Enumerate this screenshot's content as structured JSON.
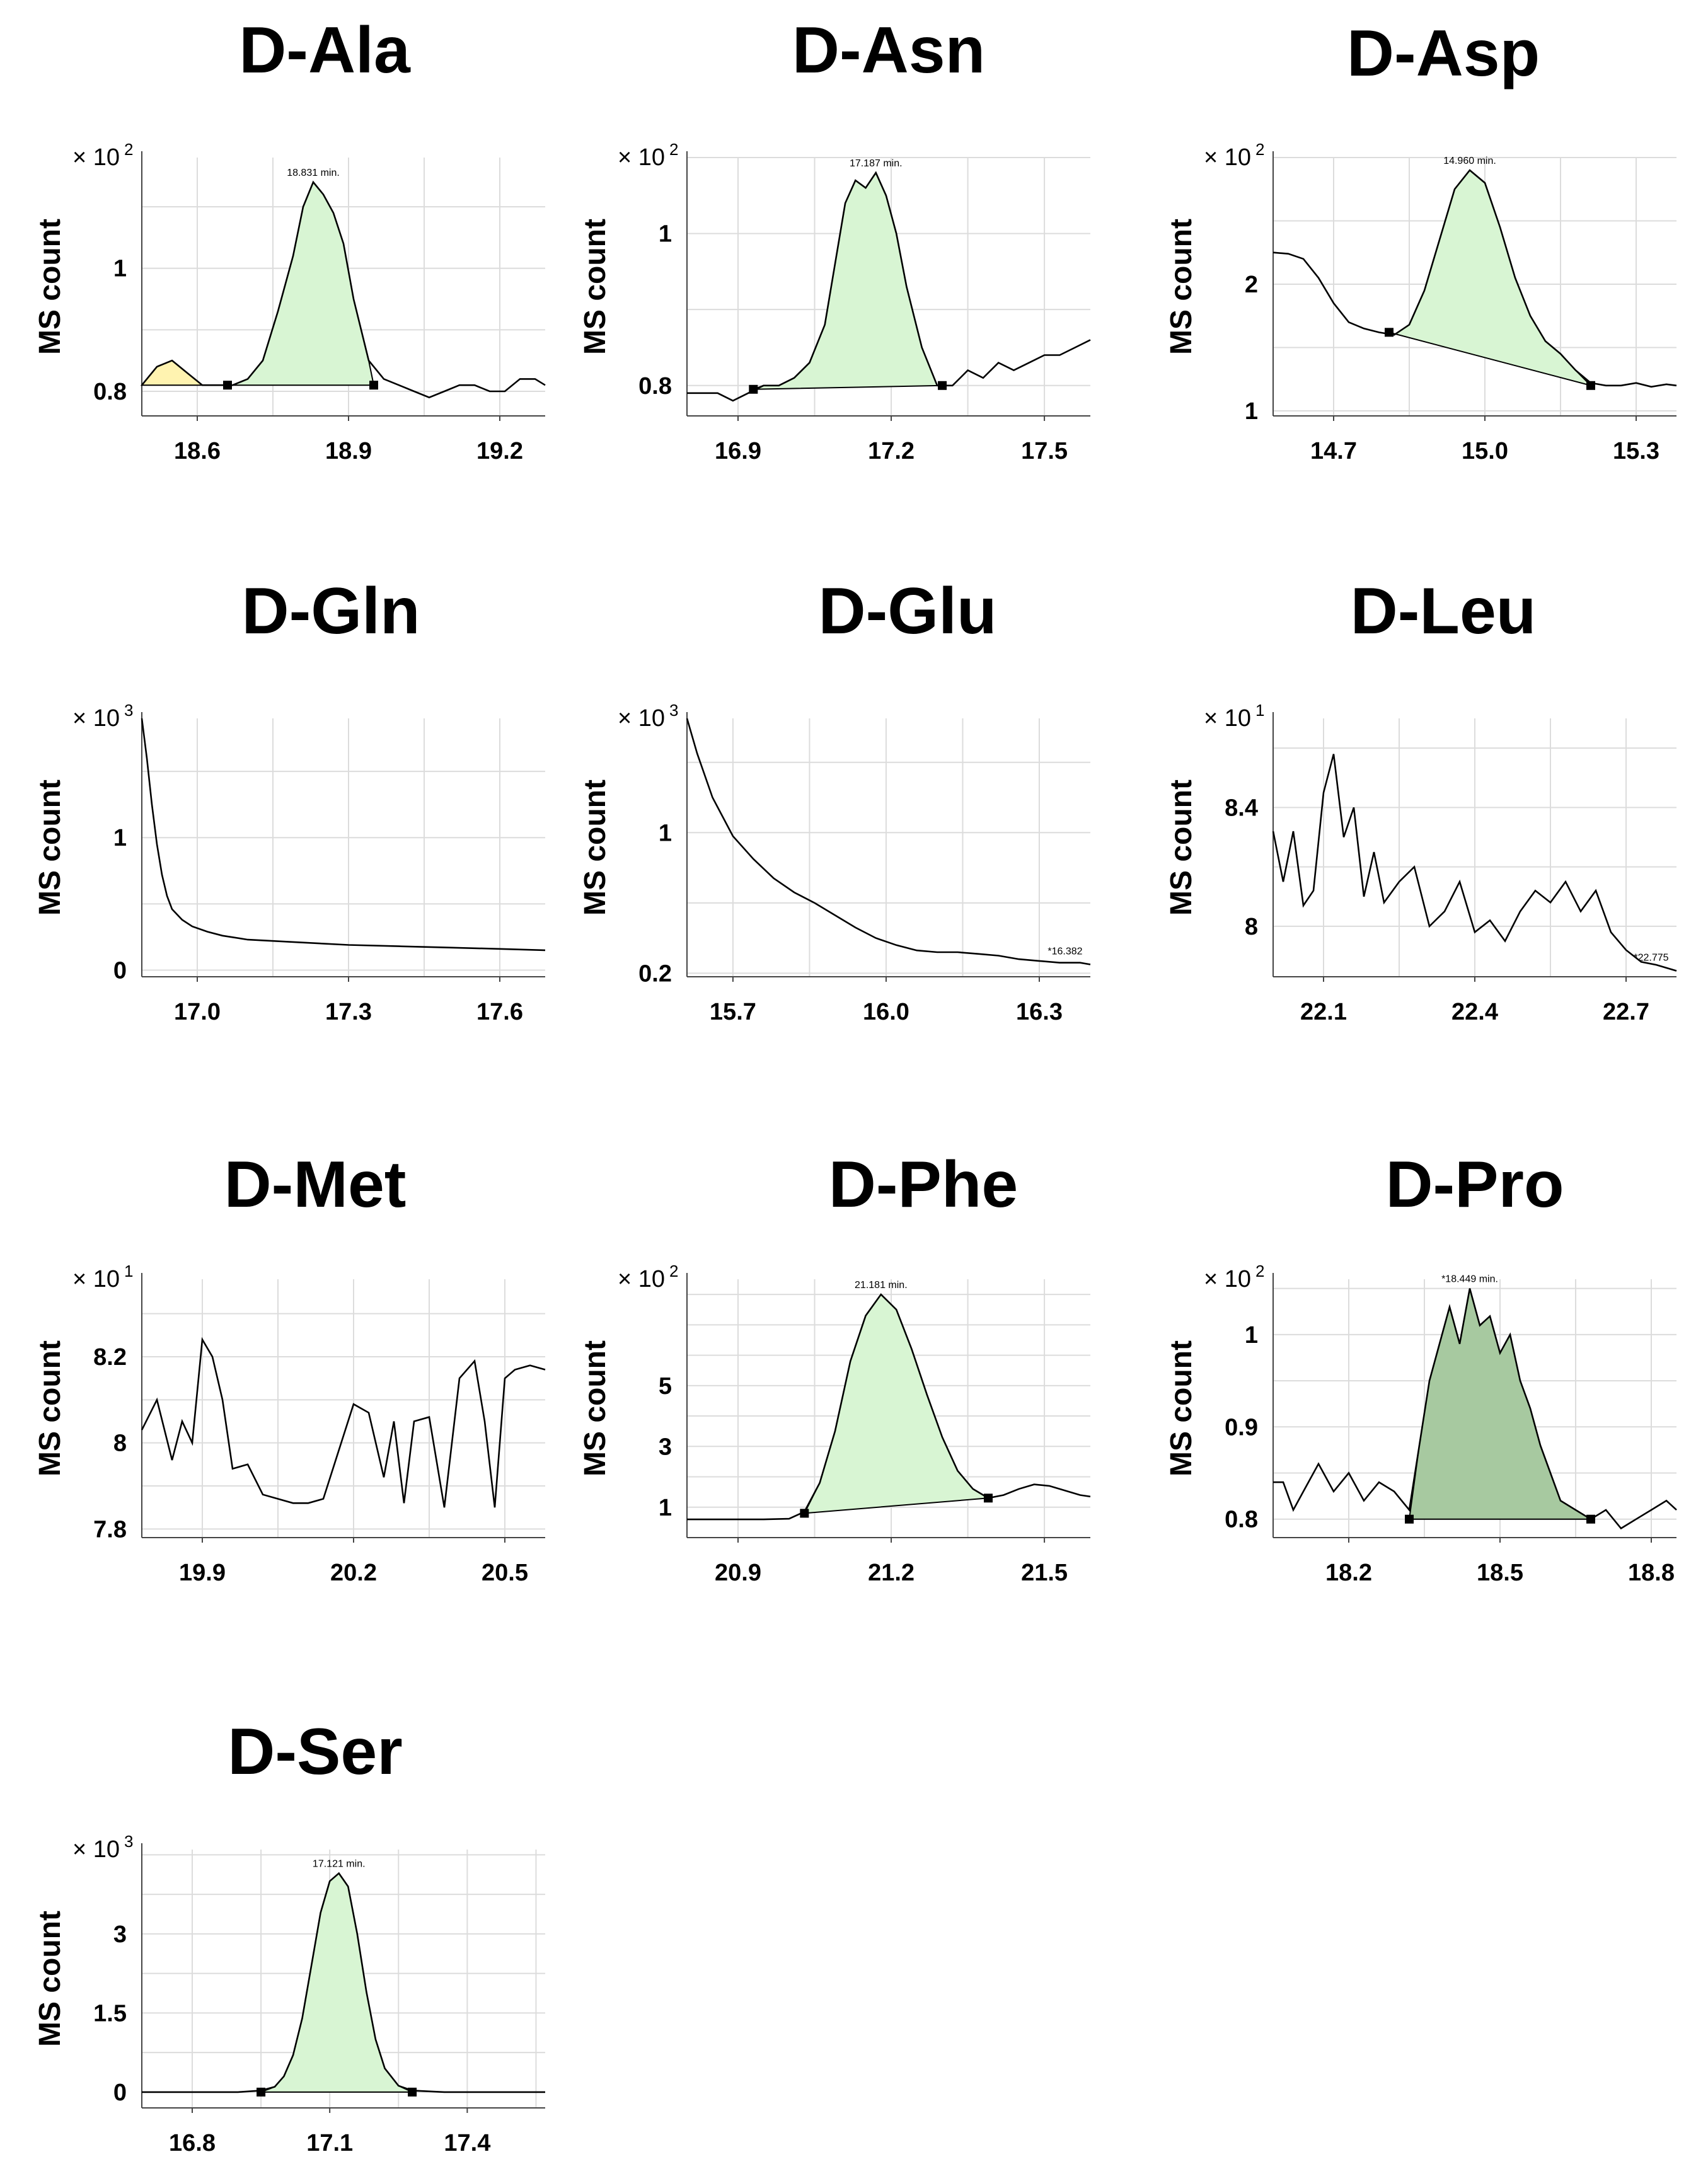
{
  "figure": {
    "y_axis_label": "MS count",
    "multiplier_symbol": "×",
    "colors": {
      "peak_light": "#d8f5d3",
      "peak_dark": "#a7c9a0",
      "peak_yellow": "#fff3b0",
      "trace": "#000000",
      "grid": "#dcdcdc"
    }
  },
  "chart_data": [
    {
      "type": "line",
      "title": "D-Ala",
      "ylabel": "MS count",
      "exponent": "2",
      "xlim": [
        18.49,
        19.29
      ],
      "ylim": [
        0.76,
        1.18
      ],
      "xticks": [
        18.6,
        18.9,
        19.2
      ],
      "xtick_labels": [
        "18.6",
        "18.9",
        "19.2"
      ],
      "yticks": [
        0.8,
        1.0
      ],
      "ytick_labels": [
        "0.8",
        "1"
      ],
      "annotations": [
        "18.831 min."
      ],
      "series": [
        {
          "name": "trace",
          "x": [
            18.49,
            18.52,
            18.55,
            18.58,
            18.61,
            18.64,
            18.67,
            18.7,
            18.73,
            18.76,
            18.79,
            18.81,
            18.83,
            18.85,
            18.87,
            18.89,
            18.91,
            18.94,
            18.97,
            19.0,
            19.03,
            19.06,
            19.09,
            19.12,
            19.15,
            19.18,
            19.21,
            19.24,
            19.27,
            19.29
          ],
          "y": [
            0.81,
            0.84,
            0.85,
            0.83,
            0.81,
            0.81,
            0.81,
            0.82,
            0.85,
            0.93,
            1.02,
            1.1,
            1.14,
            1.12,
            1.09,
            1.04,
            0.95,
            0.85,
            0.82,
            0.81,
            0.8,
            0.79,
            0.8,
            0.81,
            0.81,
            0.8,
            0.8,
            0.82,
            0.82,
            0.81
          ]
        }
      ],
      "peaks": [
        {
          "color": "light",
          "x0": 18.66,
          "x1": 18.95,
          "baseline": [
            0.81,
            0.81
          ]
        },
        {
          "color": "yellow",
          "x0": 18.49,
          "x1": 18.64,
          "baseline": [
            0.81,
            0.81
          ]
        }
      ]
    },
    {
      "type": "line",
      "title": "D-Asn",
      "ylabel": "MS count",
      "exponent": "2",
      "xlim": [
        16.8,
        17.59
      ],
      "ylim": [
        0.76,
        1.1
      ],
      "xticks": [
        16.9,
        17.2,
        17.5
      ],
      "xtick_labels": [
        "16.9",
        "17.2",
        "17.5"
      ],
      "yticks": [
        0.8,
        1.0
      ],
      "ytick_labels": [
        "0.8",
        "1"
      ],
      "annotations": [
        "17.187 min."
      ],
      "series": [
        {
          "name": "trace",
          "x": [
            16.8,
            16.83,
            16.86,
            16.89,
            16.92,
            16.95,
            16.98,
            17.01,
            17.04,
            17.07,
            17.09,
            17.11,
            17.13,
            17.15,
            17.17,
            17.19,
            17.21,
            17.23,
            17.26,
            17.29,
            17.32,
            17.35,
            17.38,
            17.41,
            17.44,
            17.47,
            17.5,
            17.53,
            17.56,
            17.59
          ],
          "y": [
            0.79,
            0.79,
            0.79,
            0.78,
            0.79,
            0.8,
            0.8,
            0.81,
            0.83,
            0.88,
            0.96,
            1.04,
            1.07,
            1.06,
            1.08,
            1.05,
            1.0,
            0.93,
            0.85,
            0.8,
            0.8,
            0.82,
            0.81,
            0.83,
            0.82,
            0.83,
            0.84,
            0.84,
            0.85,
            0.86
          ]
        }
      ],
      "peaks": [
        {
          "color": "light",
          "x0": 16.93,
          "x1": 17.3,
          "baseline": [
            0.795,
            0.8
          ]
        }
      ]
    },
    {
      "type": "line",
      "title": "D-Asp",
      "ylabel": "MS count",
      "exponent": "2",
      "xlim": [
        14.58,
        15.38
      ],
      "ylim": [
        0.96,
        3.0
      ],
      "xticks": [
        14.7,
        15.0,
        15.3
      ],
      "xtick_labels": [
        "14.7",
        "15.0",
        "15.3"
      ],
      "yticks": [
        1.0,
        2.0
      ],
      "ytick_labels": [
        "1",
        "2"
      ],
      "annotations": [
        "14.960 min."
      ],
      "series": [
        {
          "name": "trace",
          "x": [
            14.58,
            14.61,
            14.64,
            14.67,
            14.7,
            14.73,
            14.76,
            14.79,
            14.82,
            14.85,
            14.88,
            14.91,
            14.94,
            14.97,
            15.0,
            15.03,
            15.06,
            15.09,
            15.12,
            15.15,
            15.18,
            15.21,
            15.24,
            15.27,
            15.3,
            15.33,
            15.36,
            15.38
          ],
          "y": [
            2.25,
            2.24,
            2.2,
            2.05,
            1.85,
            1.7,
            1.65,
            1.62,
            1.6,
            1.68,
            1.95,
            2.35,
            2.75,
            2.9,
            2.8,
            2.45,
            2.05,
            1.75,
            1.55,
            1.45,
            1.32,
            1.22,
            1.2,
            1.2,
            1.22,
            1.19,
            1.21,
            1.2
          ]
        }
      ],
      "peaks": [
        {
          "color": "light",
          "x0": 14.81,
          "x1": 15.21,
          "baseline": [
            1.62,
            1.2
          ]
        }
      ]
    },
    {
      "type": "line",
      "title": "D-Gln",
      "ylabel": "MS count",
      "exponent": "3",
      "xlim": [
        16.89,
        17.69
      ],
      "ylim": [
        -0.05,
        1.9
      ],
      "xticks": [
        17.0,
        17.3,
        17.6
      ],
      "xtick_labels": [
        "17.0",
        "17.3",
        "17.6"
      ],
      "yticks": [
        0.0,
        1.0
      ],
      "ytick_labels": [
        "0",
        "1"
      ],
      "annotations": [],
      "series": [
        {
          "name": "trace",
          "x": [
            16.89,
            16.9,
            16.91,
            16.92,
            16.93,
            16.94,
            16.95,
            16.97,
            16.99,
            17.02,
            17.05,
            17.1,
            17.15,
            17.2,
            17.3,
            17.4,
            17.5,
            17.6,
            17.69
          ],
          "y": [
            1.9,
            1.6,
            1.25,
            0.95,
            0.72,
            0.56,
            0.46,
            0.38,
            0.33,
            0.29,
            0.26,
            0.23,
            0.22,
            0.21,
            0.19,
            0.18,
            0.17,
            0.16,
            0.15
          ]
        }
      ],
      "peaks": []
    },
    {
      "type": "line",
      "title": "D-Glu",
      "ylabel": "MS count",
      "exponent": "3",
      "xlim": [
        15.61,
        16.4
      ],
      "ylim": [
        0.18,
        1.65
      ],
      "xticks": [
        15.7,
        16.0,
        16.3
      ],
      "xtick_labels": [
        "15.7",
        "16.0",
        "16.3"
      ],
      "yticks": [
        0.2,
        1.0
      ],
      "ytick_labels": [
        "0.2",
        "1"
      ],
      "annotations": [
        "*16.382"
      ],
      "series": [
        {
          "name": "trace",
          "x": [
            15.61,
            15.63,
            15.66,
            15.7,
            15.74,
            15.78,
            15.82,
            15.86,
            15.9,
            15.94,
            15.98,
            16.02,
            16.06,
            16.1,
            16.14,
            16.18,
            16.22,
            16.26,
            16.3,
            16.34,
            16.38,
            16.4
          ],
          "y": [
            1.65,
            1.45,
            1.2,
            0.98,
            0.85,
            0.74,
            0.66,
            0.6,
            0.53,
            0.46,
            0.4,
            0.36,
            0.33,
            0.32,
            0.32,
            0.31,
            0.3,
            0.28,
            0.27,
            0.26,
            0.26,
            0.25
          ]
        }
      ],
      "peaks": []
    },
    {
      "type": "line",
      "title": "D-Leu",
      "ylabel": "MS count",
      "exponent": "1",
      "xlim": [
        22.0,
        22.8
      ],
      "ylim": [
        7.83,
        8.7
      ],
      "xticks": [
        22.1,
        22.4,
        22.7
      ],
      "xtick_labels": [
        "22.1",
        "22.4",
        "22.7"
      ],
      "yticks": [
        8.0,
        8.4
      ],
      "ytick_labels": [
        "8",
        "8.4"
      ],
      "annotations": [
        "*22.775"
      ],
      "series": [
        {
          "name": "trace",
          "x": [
            22.0,
            22.02,
            22.04,
            22.06,
            22.08,
            22.1,
            22.12,
            22.14,
            22.16,
            22.18,
            22.2,
            22.22,
            22.25,
            22.28,
            22.31,
            22.34,
            22.37,
            22.4,
            22.43,
            22.46,
            22.49,
            22.52,
            22.55,
            22.58,
            22.61,
            22.64,
            22.67,
            22.7,
            22.73,
            22.76,
            22.8
          ],
          "y": [
            8.32,
            8.15,
            8.32,
            8.07,
            8.12,
            8.45,
            8.58,
            8.3,
            8.4,
            8.1,
            8.25,
            8.08,
            8.15,
            8.2,
            8.0,
            8.05,
            8.15,
            7.98,
            8.02,
            7.95,
            8.05,
            8.12,
            8.08,
            8.15,
            8.05,
            8.12,
            7.98,
            7.92,
            7.88,
            7.87,
            7.85
          ]
        }
      ],
      "peaks": []
    },
    {
      "type": "line",
      "title": "D-Met",
      "ylabel": "MS count",
      "exponent": "1",
      "xlim": [
        19.78,
        20.58
      ],
      "ylim": [
        7.78,
        8.38
      ],
      "xticks": [
        19.9,
        20.2,
        20.5
      ],
      "xtick_labels": [
        "19.9",
        "20.2",
        "20.5"
      ],
      "yticks": [
        7.8,
        8.0,
        8.2
      ],
      "ytick_labels": [
        "7.8",
        "8",
        "8.2"
      ],
      "annotations": [],
      "series": [
        {
          "name": "trace",
          "x": [
            19.78,
            19.81,
            19.84,
            19.86,
            19.88,
            19.9,
            19.92,
            19.94,
            19.96,
            19.99,
            20.02,
            20.05,
            20.08,
            20.11,
            20.14,
            20.17,
            20.2,
            20.23,
            20.26,
            20.28,
            20.3,
            20.32,
            20.35,
            20.38,
            20.41,
            20.44,
            20.46,
            20.48,
            20.5,
            20.52,
            20.55,
            20.58
          ],
          "y": [
            8.03,
            8.1,
            7.96,
            8.05,
            8.0,
            8.24,
            8.2,
            8.1,
            7.94,
            7.95,
            7.88,
            7.87,
            7.86,
            7.86,
            7.87,
            7.98,
            8.09,
            8.07,
            7.92,
            8.05,
            7.86,
            8.05,
            8.06,
            7.85,
            8.15,
            8.19,
            8.05,
            7.85,
            8.15,
            8.17,
            8.18,
            8.17
          ]
        }
      ],
      "peaks": []
    },
    {
      "type": "line",
      "title": "D-Phe",
      "ylabel": "MS count",
      "exponent": "2",
      "xlim": [
        20.8,
        21.59
      ],
      "ylim": [
        0.0,
        8.5
      ],
      "xticks": [
        20.9,
        21.2,
        21.5
      ],
      "xtick_labels": [
        "20.9",
        "21.2",
        "21.5"
      ],
      "yticks": [
        1.0,
        3.0,
        5.0
      ],
      "ytick_labels": [
        "1",
        "3",
        "5"
      ],
      "annotations": [
        "21.181 min."
      ],
      "series": [
        {
          "name": "trace",
          "x": [
            20.8,
            20.85,
            20.9,
            20.95,
            21.0,
            21.03,
            21.06,
            21.09,
            21.12,
            21.15,
            21.18,
            21.21,
            21.24,
            21.27,
            21.3,
            21.33,
            21.36,
            21.39,
            21.42,
            21.45,
            21.48,
            21.51,
            21.54,
            21.57,
            21.59
          ],
          "y": [
            0.6,
            0.6,
            0.6,
            0.6,
            0.62,
            0.85,
            1.8,
            3.5,
            5.8,
            7.3,
            8.0,
            7.5,
            6.2,
            4.7,
            3.3,
            2.2,
            1.6,
            1.3,
            1.4,
            1.6,
            1.75,
            1.7,
            1.55,
            1.4,
            1.35
          ]
        }
      ],
      "peaks": [
        {
          "color": "light",
          "x0": 21.03,
          "x1": 21.39,
          "baseline": [
            0.8,
            1.3
          ]
        }
      ]
    },
    {
      "type": "line",
      "title": "D-Pro",
      "ylabel": "MS count",
      "exponent": "2",
      "xlim": [
        18.05,
        18.85
      ],
      "ylim": [
        0.78,
        1.06
      ],
      "xticks": [
        18.2,
        18.5,
        18.8
      ],
      "xtick_labels": [
        "18.2",
        "18.5",
        "18.8"
      ],
      "yticks": [
        0.8,
        0.9,
        1.0
      ],
      "ytick_labels": [
        "0.8",
        "0.9",
        "1"
      ],
      "annotations": [
        "*18.449 min."
      ],
      "series": [
        {
          "name": "trace",
          "x": [
            18.05,
            18.07,
            18.09,
            18.11,
            18.14,
            18.17,
            18.2,
            18.23,
            18.26,
            18.29,
            18.32,
            18.34,
            18.36,
            18.38,
            18.4,
            18.42,
            18.44,
            18.46,
            18.48,
            18.5,
            18.52,
            18.54,
            18.56,
            18.58,
            18.6,
            18.62,
            18.65,
            18.68,
            18.71,
            18.74,
            18.77,
            18.8,
            18.83,
            18.85
          ],
          "y": [
            0.84,
            0.84,
            0.81,
            0.83,
            0.86,
            0.83,
            0.85,
            0.82,
            0.84,
            0.83,
            0.81,
            0.88,
            0.95,
            0.99,
            1.03,
            0.99,
            1.05,
            1.01,
            1.02,
            0.98,
            1.0,
            0.95,
            0.92,
            0.88,
            0.85,
            0.82,
            0.81,
            0.8,
            0.81,
            0.79,
            0.8,
            0.81,
            0.82,
            0.81
          ]
        }
      ],
      "peaks": [
        {
          "color": "dark",
          "x0": 18.32,
          "x1": 18.68,
          "baseline": [
            0.8,
            0.8
          ]
        }
      ]
    },
    {
      "type": "line",
      "title": "D-Ser",
      "ylabel": "MS count",
      "exponent": "3",
      "xlim": [
        16.69,
        17.57
      ],
      "ylim": [
        -0.3,
        4.6
      ],
      "xticks": [
        16.8,
        17.1,
        17.4
      ],
      "xtick_labels": [
        "16.8",
        "17.1",
        "17.4"
      ],
      "yticks": [
        0.0,
        1.5,
        3.0
      ],
      "ytick_labels": [
        "0",
        "1.5",
        "3"
      ],
      "annotations": [
        "17.121 min."
      ],
      "series": [
        {
          "name": "trace",
          "x": [
            16.69,
            16.8,
            16.9,
            16.95,
            16.98,
            17.0,
            17.02,
            17.04,
            17.06,
            17.08,
            17.1,
            17.12,
            17.14,
            17.16,
            17.18,
            17.2,
            17.22,
            17.25,
            17.28,
            17.35,
            17.45,
            17.57
          ],
          "y": [
            0.0,
            0.0,
            0.0,
            0.03,
            0.1,
            0.3,
            0.7,
            1.4,
            2.4,
            3.4,
            4.0,
            4.15,
            3.9,
            3.0,
            1.9,
            1.0,
            0.45,
            0.12,
            0.03,
            0.0,
            0.0,
            0.0
          ]
        }
      ],
      "peaks": [
        {
          "color": "light",
          "x0": 16.95,
          "x1": 17.28,
          "baseline": [
            0.0,
            0.0
          ]
        }
      ]
    }
  ]
}
